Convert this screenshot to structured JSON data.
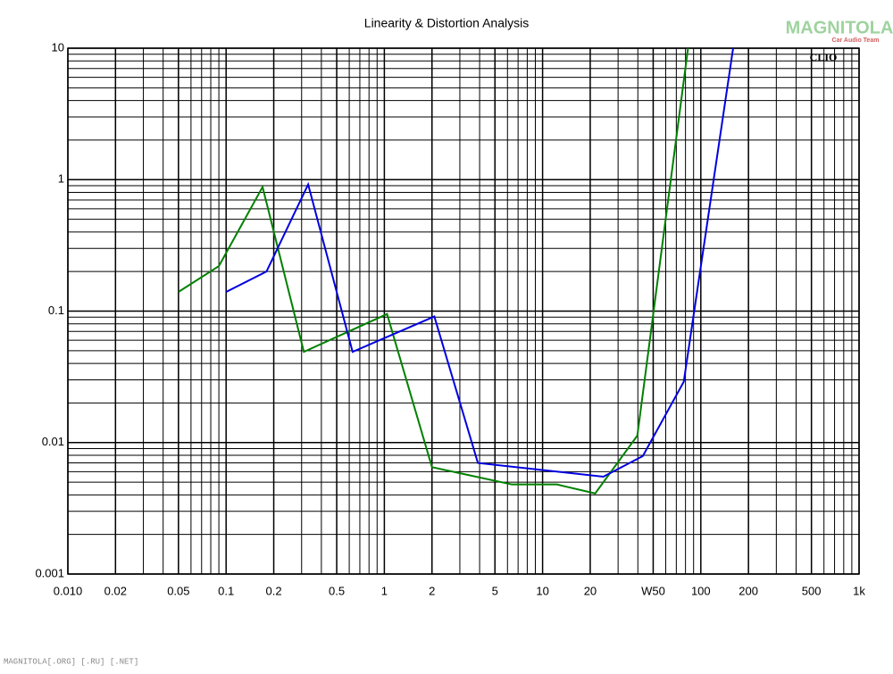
{
  "chart_data": {
    "type": "line",
    "title": "Linearity & Distortion Analysis",
    "logo": "MAGNITOLA",
    "logo_subtitle": "Car Audio Team",
    "badge": "CLIO",
    "footer": "MAGNITOLA[.ORG] [.RU] [.NET]",
    "xscale": "log",
    "yscale": "log",
    "grid": true,
    "xlim": [
      0.01,
      1000
    ],
    "ylim": [
      0.001,
      10
    ],
    "xticks": [
      {
        "value": 0.01,
        "label": "0.010"
      },
      0.02,
      0.05,
      0.1,
      0.2,
      0.5,
      1,
      2,
      5,
      10,
      20,
      {
        "value": 50,
        "label": "W50"
      },
      100,
      200,
      500,
      {
        "value": 1000,
        "label": "1k"
      }
    ],
    "yticks": [
      10,
      1,
      0.1,
      0.01,
      0.001
    ],
    "series": [
      {
        "color": "#008000",
        "x": [
          0.05,
          0.09,
          0.17,
          0.31,
          1.04,
          2,
          6.4,
          12.3,
          21.5,
          39.7,
          83
        ],
        "values": [
          0.14,
          0.22,
          0.88,
          0.049,
          0.095,
          0.0065,
          0.0048,
          0.0048,
          0.0041,
          0.0113,
          10
        ]
      },
      {
        "color": "#0000e0",
        "x": [
          0.1,
          0.18,
          0.33,
          0.63,
          2.07,
          3.9,
          24.2,
          43,
          78,
          160
        ],
        "values": [
          0.14,
          0.2,
          0.92,
          0.049,
          0.091,
          0.007,
          0.0055,
          0.0079,
          0.029,
          10
        ]
      }
    ]
  }
}
